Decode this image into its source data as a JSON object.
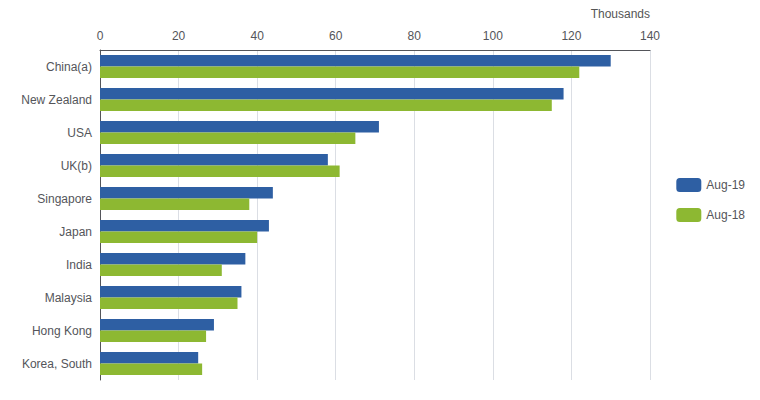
{
  "chart_data": {
    "type": "bar",
    "orientation": "horizontal",
    "categories": [
      "China(a)",
      "New Zealand",
      "USA",
      "UK(b)",
      "Singapore",
      "Japan",
      "India",
      "Malaysia",
      "Hong Kong",
      "Korea, South"
    ],
    "series": [
      {
        "name": "Aug-19",
        "color": "#2E5FA3",
        "values": [
          130,
          118,
          71,
          58,
          44,
          43,
          37,
          36,
          29,
          25
        ]
      },
      {
        "name": "Aug-18",
        "color": "#8DB832",
        "values": [
          122,
          115,
          65,
          61,
          38,
          40,
          31,
          35,
          27,
          26
        ]
      }
    ],
    "xlim": [
      0,
      140
    ],
    "xticks": [
      0,
      20,
      40,
      60,
      80,
      100,
      120,
      140
    ],
    "xlabel": "Thousands",
    "grid": true,
    "legend": "right"
  }
}
